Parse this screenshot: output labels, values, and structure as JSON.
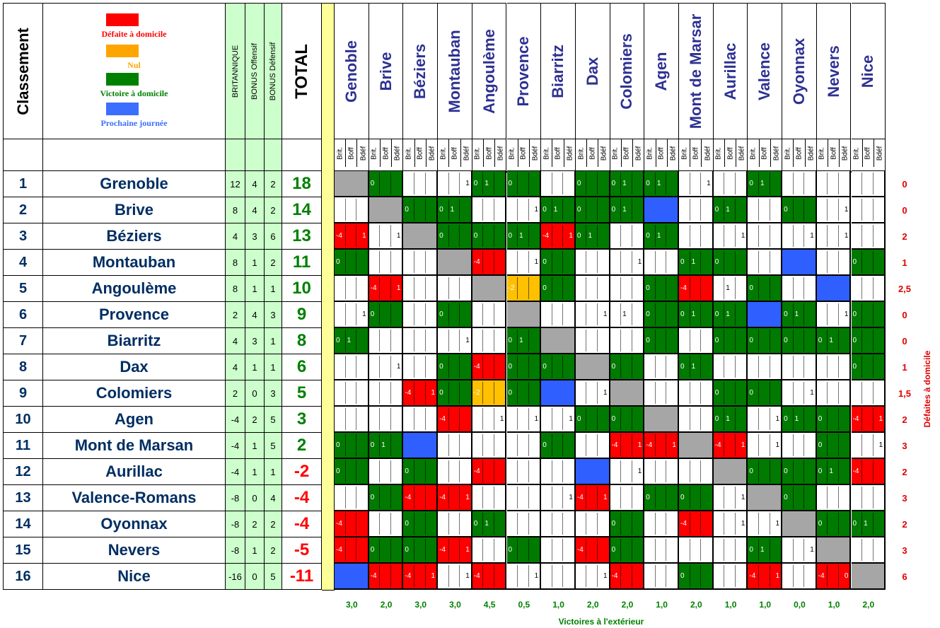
{
  "headers": {
    "classement": "Classement",
    "britannique": "BRITANNIQUE",
    "bonus_offensif": "BONUS Offensif",
    "bonus_defensif": "BONUS Défensif",
    "total": "TOTAL",
    "sub_labels": [
      "Brit.",
      "Boff",
      "Bdéf"
    ]
  },
  "legend": {
    "items": [
      {
        "label": "Défaite à domicile",
        "color": "#ff0000"
      },
      {
        "label": "Nul",
        "color": "#ffa500"
      },
      {
        "label": "Victoire à domicile",
        "color": "#008000"
      },
      {
        "label": "Prochaine journée",
        "color": "#3b6fff"
      }
    ]
  },
  "colors": {
    "red": "#ff0000",
    "orange": "#ffc000",
    "green": "#007a00",
    "blue": "#2f5fff",
    "gray": "#a6a6a6",
    "white": "#ffffff",
    "yellow_separator": "#ffff99",
    "stats_bg": "#ccffcc",
    "team_color": "#002e63",
    "header_color": "#2e3192",
    "total_pos": "#008000",
    "total_neg": "#ff0000"
  },
  "teams": [
    {
      "rank": "1",
      "name": "Grenoble",
      "brit": "12",
      "boff": "4",
      "bdef": "2",
      "total": "18",
      "home_losses": "0"
    },
    {
      "rank": "2",
      "name": "Brive",
      "brit": "8",
      "boff": "4",
      "bdef": "2",
      "total": "14",
      "home_losses": "0"
    },
    {
      "rank": "3",
      "name": "Béziers",
      "brit": "4",
      "boff": "3",
      "bdef": "6",
      "total": "13",
      "home_losses": "2"
    },
    {
      "rank": "4",
      "name": "Montauban",
      "brit": "8",
      "boff": "1",
      "bdef": "2",
      "total": "11",
      "home_losses": "1"
    },
    {
      "rank": "5",
      "name": "Angoulème",
      "brit": "8",
      "boff": "1",
      "bdef": "1",
      "total": "10",
      "home_losses": "2,5"
    },
    {
      "rank": "6",
      "name": "Provence",
      "brit": "2",
      "boff": "4",
      "bdef": "3",
      "total": "9",
      "home_losses": "0"
    },
    {
      "rank": "7",
      "name": "Biarritz",
      "brit": "4",
      "boff": "3",
      "bdef": "1",
      "total": "8",
      "home_losses": "0"
    },
    {
      "rank": "8",
      "name": "Dax",
      "brit": "4",
      "boff": "1",
      "bdef": "1",
      "total": "6",
      "home_losses": "1"
    },
    {
      "rank": "9",
      "name": "Colomiers",
      "brit": "2",
      "boff": "0",
      "bdef": "3",
      "total": "5",
      "home_losses": "1,5"
    },
    {
      "rank": "10",
      "name": "Agen",
      "brit": "-4",
      "boff": "2",
      "bdef": "5",
      "total": "3",
      "home_losses": "2"
    },
    {
      "rank": "11",
      "name": "Mont de Marsan",
      "brit": "-4",
      "boff": "1",
      "bdef": "5",
      "total": "2",
      "home_losses": "3"
    },
    {
      "rank": "12",
      "name": "Aurillac",
      "brit": "-4",
      "boff": "1",
      "bdef": "1",
      "total": "-2",
      "home_losses": "2"
    },
    {
      "rank": "13",
      "name": "Valence-Romans",
      "brit": "-8",
      "boff": "0",
      "bdef": "4",
      "total": "-4",
      "home_losses": "3"
    },
    {
      "rank": "14",
      "name": "Oyonnax",
      "brit": "-8",
      "boff": "2",
      "bdef": "2",
      "total": "-4",
      "home_losses": "2"
    },
    {
      "rank": "15",
      "name": "Nevers",
      "brit": "-8",
      "boff": "1",
      "bdef": "2",
      "total": "-5",
      "home_losses": "3"
    },
    {
      "rank": "16",
      "name": "Nice",
      "brit": "-16",
      "boff": "0",
      "bdef": "5",
      "total": "-11",
      "home_losses": "6"
    }
  ],
  "columns": [
    {
      "name": "Genoble",
      "away_wins": "3,0"
    },
    {
      "name": "Brive",
      "away_wins": "2,0"
    },
    {
      "name": "Béziers",
      "away_wins": "3,0"
    },
    {
      "name": "Montauban",
      "away_wins": "3,0"
    },
    {
      "name": "Angoulème",
      "away_wins": "4,5"
    },
    {
      "name": "Provence",
      "away_wins": "0,5"
    },
    {
      "name": "Biarritz",
      "away_wins": "1,0"
    },
    {
      "name": "Dax",
      "away_wins": "2,0"
    },
    {
      "name": "Colomiers",
      "away_wins": "2,0"
    },
    {
      "name": "Agen",
      "away_wins": "1,0"
    },
    {
      "name": "Mont de Marsar",
      "away_wins": "2,0"
    },
    {
      "name": "Aurillac",
      "away_wins": "1,0"
    },
    {
      "name": "Valence",
      "away_wins": "1,0"
    },
    {
      "name": "Oyonnax",
      "away_wins": "0,0"
    },
    {
      "name": "Nevers",
      "away_wins": "1,0"
    },
    {
      "name": "Nice",
      "away_wins": "2,0"
    }
  ],
  "matrix": [
    [
      [
        "a"
      ],
      [
        "g",
        "0"
      ],
      [
        "w"
      ],
      [
        "w",
        "",
        "",
        "1"
      ],
      [
        "g",
        "0",
        "1"
      ],
      [
        "g",
        "0"
      ],
      [
        "w"
      ],
      [
        "g",
        "0"
      ],
      [
        "g",
        "0",
        "1"
      ],
      [
        "g",
        "0",
        "1"
      ],
      [
        "w",
        "",
        "",
        "1"
      ],
      [
        "w"
      ],
      [
        "g",
        "0",
        "1"
      ],
      [
        "w"
      ],
      [
        "w"
      ],
      [
        "w"
      ]
    ],
    [
      [
        "w"
      ],
      [
        "a"
      ],
      [
        "g",
        "0"
      ],
      [
        "g",
        "0",
        "1"
      ],
      [
        "w"
      ],
      [
        "w",
        "",
        "",
        "1"
      ],
      [
        "g",
        "0",
        "1"
      ],
      [
        "g",
        "0"
      ],
      [
        "g",
        "0",
        "1"
      ],
      [
        "b"
      ],
      [
        "w"
      ],
      [
        "g",
        "0",
        "1"
      ],
      [
        "w"
      ],
      [
        "g",
        "0"
      ],
      [
        "w",
        "",
        "",
        "1"
      ],
      [
        "w"
      ]
    ],
    [
      [
        "r",
        "-4",
        "",
        "1"
      ],
      [
        "w",
        "",
        "",
        "1"
      ],
      [
        "a"
      ],
      [
        "g",
        "0"
      ],
      [
        "g",
        "0"
      ],
      [
        "g",
        "0",
        "1"
      ],
      [
        "r",
        "-4",
        "",
        "1"
      ],
      [
        "g",
        "0",
        "1"
      ],
      [
        "w"
      ],
      [
        "g",
        "0",
        "1"
      ],
      [
        "w"
      ],
      [
        "w",
        "",
        "",
        "1"
      ],
      [
        "w"
      ],
      [
        "w",
        "",
        "",
        "1"
      ],
      [
        "w",
        "",
        "",
        "1"
      ],
      [
        "w"
      ]
    ],
    [
      [
        "g",
        "0"
      ],
      [
        "w"
      ],
      [
        "w"
      ],
      [
        "a"
      ],
      [
        "r",
        "-4"
      ],
      [
        "w",
        "",
        "",
        "1"
      ],
      [
        "g",
        "0"
      ],
      [
        "w"
      ],
      [
        "w",
        "",
        "",
        "1"
      ],
      [
        "w"
      ],
      [
        "g",
        "0",
        "1"
      ],
      [
        "g",
        "0"
      ],
      [
        "w"
      ],
      [
        "b"
      ],
      [
        "w"
      ],
      [
        "g",
        "0"
      ]
    ],
    [
      [
        "w"
      ],
      [
        "r",
        "-4",
        "",
        "1"
      ],
      [
        "w"
      ],
      [
        "w"
      ],
      [
        "a"
      ],
      [
        "o",
        "-2"
      ],
      [
        "g",
        "0"
      ],
      [
        "w"
      ],
      [
        "w"
      ],
      [
        "g",
        "0"
      ],
      [
        "r",
        "-4"
      ],
      [
        "w",
        "",
        "1"
      ],
      [
        "g",
        "0"
      ],
      [
        "w"
      ],
      [
        "b"
      ],
      [
        "w"
      ]
    ],
    [
      [
        "w",
        "",
        "",
        "1"
      ],
      [
        "g",
        "0"
      ],
      [
        "w"
      ],
      [
        "g",
        "0"
      ],
      [
        "w"
      ],
      [
        "a"
      ],
      [
        "w"
      ],
      [
        "w",
        "",
        "",
        "1"
      ],
      [
        "w",
        "",
        "1"
      ],
      [
        "g",
        "0"
      ],
      [
        "g",
        "0",
        "1"
      ],
      [
        "g",
        "0",
        "1"
      ],
      [
        "b"
      ],
      [
        "g",
        "0",
        "1"
      ],
      [
        "w",
        "",
        "",
        "1"
      ],
      [
        "g",
        "0"
      ]
    ],
    [
      [
        "g",
        "0",
        "1"
      ],
      [
        "w"
      ],
      [
        "w"
      ],
      [
        "w",
        "",
        "",
        "1"
      ],
      [
        "w"
      ],
      [
        "g",
        "0",
        "1"
      ],
      [
        "a"
      ],
      [
        "w"
      ],
      [
        "w"
      ],
      [
        "g",
        "0"
      ],
      [
        "w"
      ],
      [
        "g",
        "0"
      ],
      [
        "g",
        "0"
      ],
      [
        "g",
        "0"
      ],
      [
        "g",
        "0",
        "1"
      ],
      [
        "g",
        "0"
      ]
    ],
    [
      [
        "w"
      ],
      [
        "w",
        "",
        "",
        "1"
      ],
      [
        "w"
      ],
      [
        "g",
        "0"
      ],
      [
        "r",
        "-4"
      ],
      [
        "g",
        "0"
      ],
      [
        "g",
        "0"
      ],
      [
        "a"
      ],
      [
        "g",
        "0"
      ],
      [
        "w"
      ],
      [
        "g",
        "0",
        "1"
      ],
      [
        "w"
      ],
      [
        "w"
      ],
      [
        "w"
      ],
      [
        "w"
      ],
      [
        "g",
        "0"
      ]
    ],
    [
      [
        "w"
      ],
      [
        "w"
      ],
      [
        "r",
        "-4",
        "",
        "1"
      ],
      [
        "g",
        "0"
      ],
      [
        "o",
        "-2"
      ],
      [
        "g",
        "0"
      ],
      [
        "b"
      ],
      [
        "w",
        "",
        "",
        "1"
      ],
      [
        "a"
      ],
      [
        "w"
      ],
      [
        "w"
      ],
      [
        "g",
        "0"
      ],
      [
        "g",
        "0"
      ],
      [
        "w",
        "",
        "",
        "1"
      ],
      [
        "w"
      ],
      [
        "w"
      ]
    ],
    [
      [
        "w"
      ],
      [
        "w"
      ],
      [
        "w"
      ],
      [
        "r",
        "-4"
      ],
      [
        "w",
        "",
        "",
        "1"
      ],
      [
        "w",
        "",
        "",
        "1"
      ],
      [
        "w",
        "",
        "",
        "1"
      ],
      [
        "g",
        "0"
      ],
      [
        "g",
        "0"
      ],
      [
        "a"
      ],
      [
        "w"
      ],
      [
        "g",
        "0",
        "1"
      ],
      [
        "w",
        "",
        "",
        "1"
      ],
      [
        "g",
        "0",
        "1"
      ],
      [
        "g",
        "0"
      ],
      [
        "r",
        "-4",
        "",
        "1"
      ]
    ],
    [
      [
        "g",
        "0"
      ],
      [
        "g",
        "0",
        "1"
      ],
      [
        "b"
      ],
      [
        "w"
      ],
      [
        "w"
      ],
      [
        "w"
      ],
      [
        "g",
        "0"
      ],
      [
        "w"
      ],
      [
        "r",
        "-4",
        "",
        "1"
      ],
      [
        "r",
        "-4",
        "",
        "1"
      ],
      [
        "a"
      ],
      [
        "r",
        "-4",
        "",
        "1"
      ],
      [
        "w",
        "",
        "",
        "1"
      ],
      [
        "w"
      ],
      [
        "g",
        "0"
      ],
      [
        "w",
        "",
        "",
        "1"
      ]
    ],
    [
      [
        "g",
        "0"
      ],
      [
        "w"
      ],
      [
        "g",
        "0"
      ],
      [
        "w"
      ],
      [
        "r",
        "-4"
      ],
      [
        "w"
      ],
      [
        "w"
      ],
      [
        "b"
      ],
      [
        "w",
        "",
        "",
        "1"
      ],
      [
        "w"
      ],
      [
        "w"
      ],
      [
        "a"
      ],
      [
        "g",
        "0"
      ],
      [
        "g",
        "0"
      ],
      [
        "g",
        "0",
        "1"
      ],
      [
        "r",
        "-4"
      ]
    ],
    [
      [
        "w"
      ],
      [
        "g",
        "0"
      ],
      [
        "r",
        "-4"
      ],
      [
        "r",
        "-4",
        "",
        "1"
      ],
      [
        "w"
      ],
      [
        "w"
      ],
      [
        "w",
        "",
        "",
        "1"
      ],
      [
        "r",
        "-4",
        "",
        "1"
      ],
      [
        "w"
      ],
      [
        "g",
        "0"
      ],
      [
        "g",
        "0"
      ],
      [
        "w",
        "",
        "",
        "1"
      ],
      [
        "a"
      ],
      [
        "g",
        "0"
      ],
      [
        "w"
      ],
      [
        "w"
      ]
    ],
    [
      [
        "r",
        "-4"
      ],
      [
        "w"
      ],
      [
        "g",
        "0"
      ],
      [
        "w"
      ],
      [
        "g",
        "0",
        "1"
      ],
      [
        "w"
      ],
      [
        "w"
      ],
      [
        "w"
      ],
      [
        "g",
        "0"
      ],
      [
        "w"
      ],
      [
        "r",
        "-4"
      ],
      [
        "w",
        "",
        "",
        "1"
      ],
      [
        "w",
        "",
        "",
        "1"
      ],
      [
        "a"
      ],
      [
        "g",
        "0"
      ],
      [
        "g",
        "0",
        "1"
      ]
    ],
    [
      [
        "r",
        "-4"
      ],
      [
        "g",
        "0"
      ],
      [
        "g",
        "0"
      ],
      [
        "r",
        "-4",
        "",
        "1"
      ],
      [
        "w"
      ],
      [
        "g",
        "0"
      ],
      [
        "w"
      ],
      [
        "r",
        "-4"
      ],
      [
        "g",
        "0"
      ],
      [
        "w"
      ],
      [
        "w"
      ],
      [
        "w"
      ],
      [
        "g",
        "0",
        "1"
      ],
      [
        "w",
        "",
        "",
        "1"
      ],
      [
        "a"
      ],
      [
        "w"
      ]
    ],
    [
      [
        "b"
      ],
      [
        "r",
        "-4"
      ],
      [
        "r",
        "-4",
        "",
        "1"
      ],
      [
        "w",
        "",
        "",
        "1"
      ],
      [
        "r",
        "-4"
      ],
      [
        "w",
        "",
        "",
        "1"
      ],
      [
        "w"
      ],
      [
        "w",
        "",
        "",
        "1"
      ],
      [
        "r",
        "-4"
      ],
      [
        "w"
      ],
      [
        "g",
        "0"
      ],
      [
        "w"
      ],
      [
        "r",
        "-4",
        "",
        "1"
      ],
      [
        "w"
      ],
      [
        "r",
        "-4",
        "",
        "0"
      ],
      [
        "a"
      ]
    ]
  ],
  "right_axis_label": "Défaites à domicile",
  "bottom_axis_label": "Victoires à l'extérieur"
}
